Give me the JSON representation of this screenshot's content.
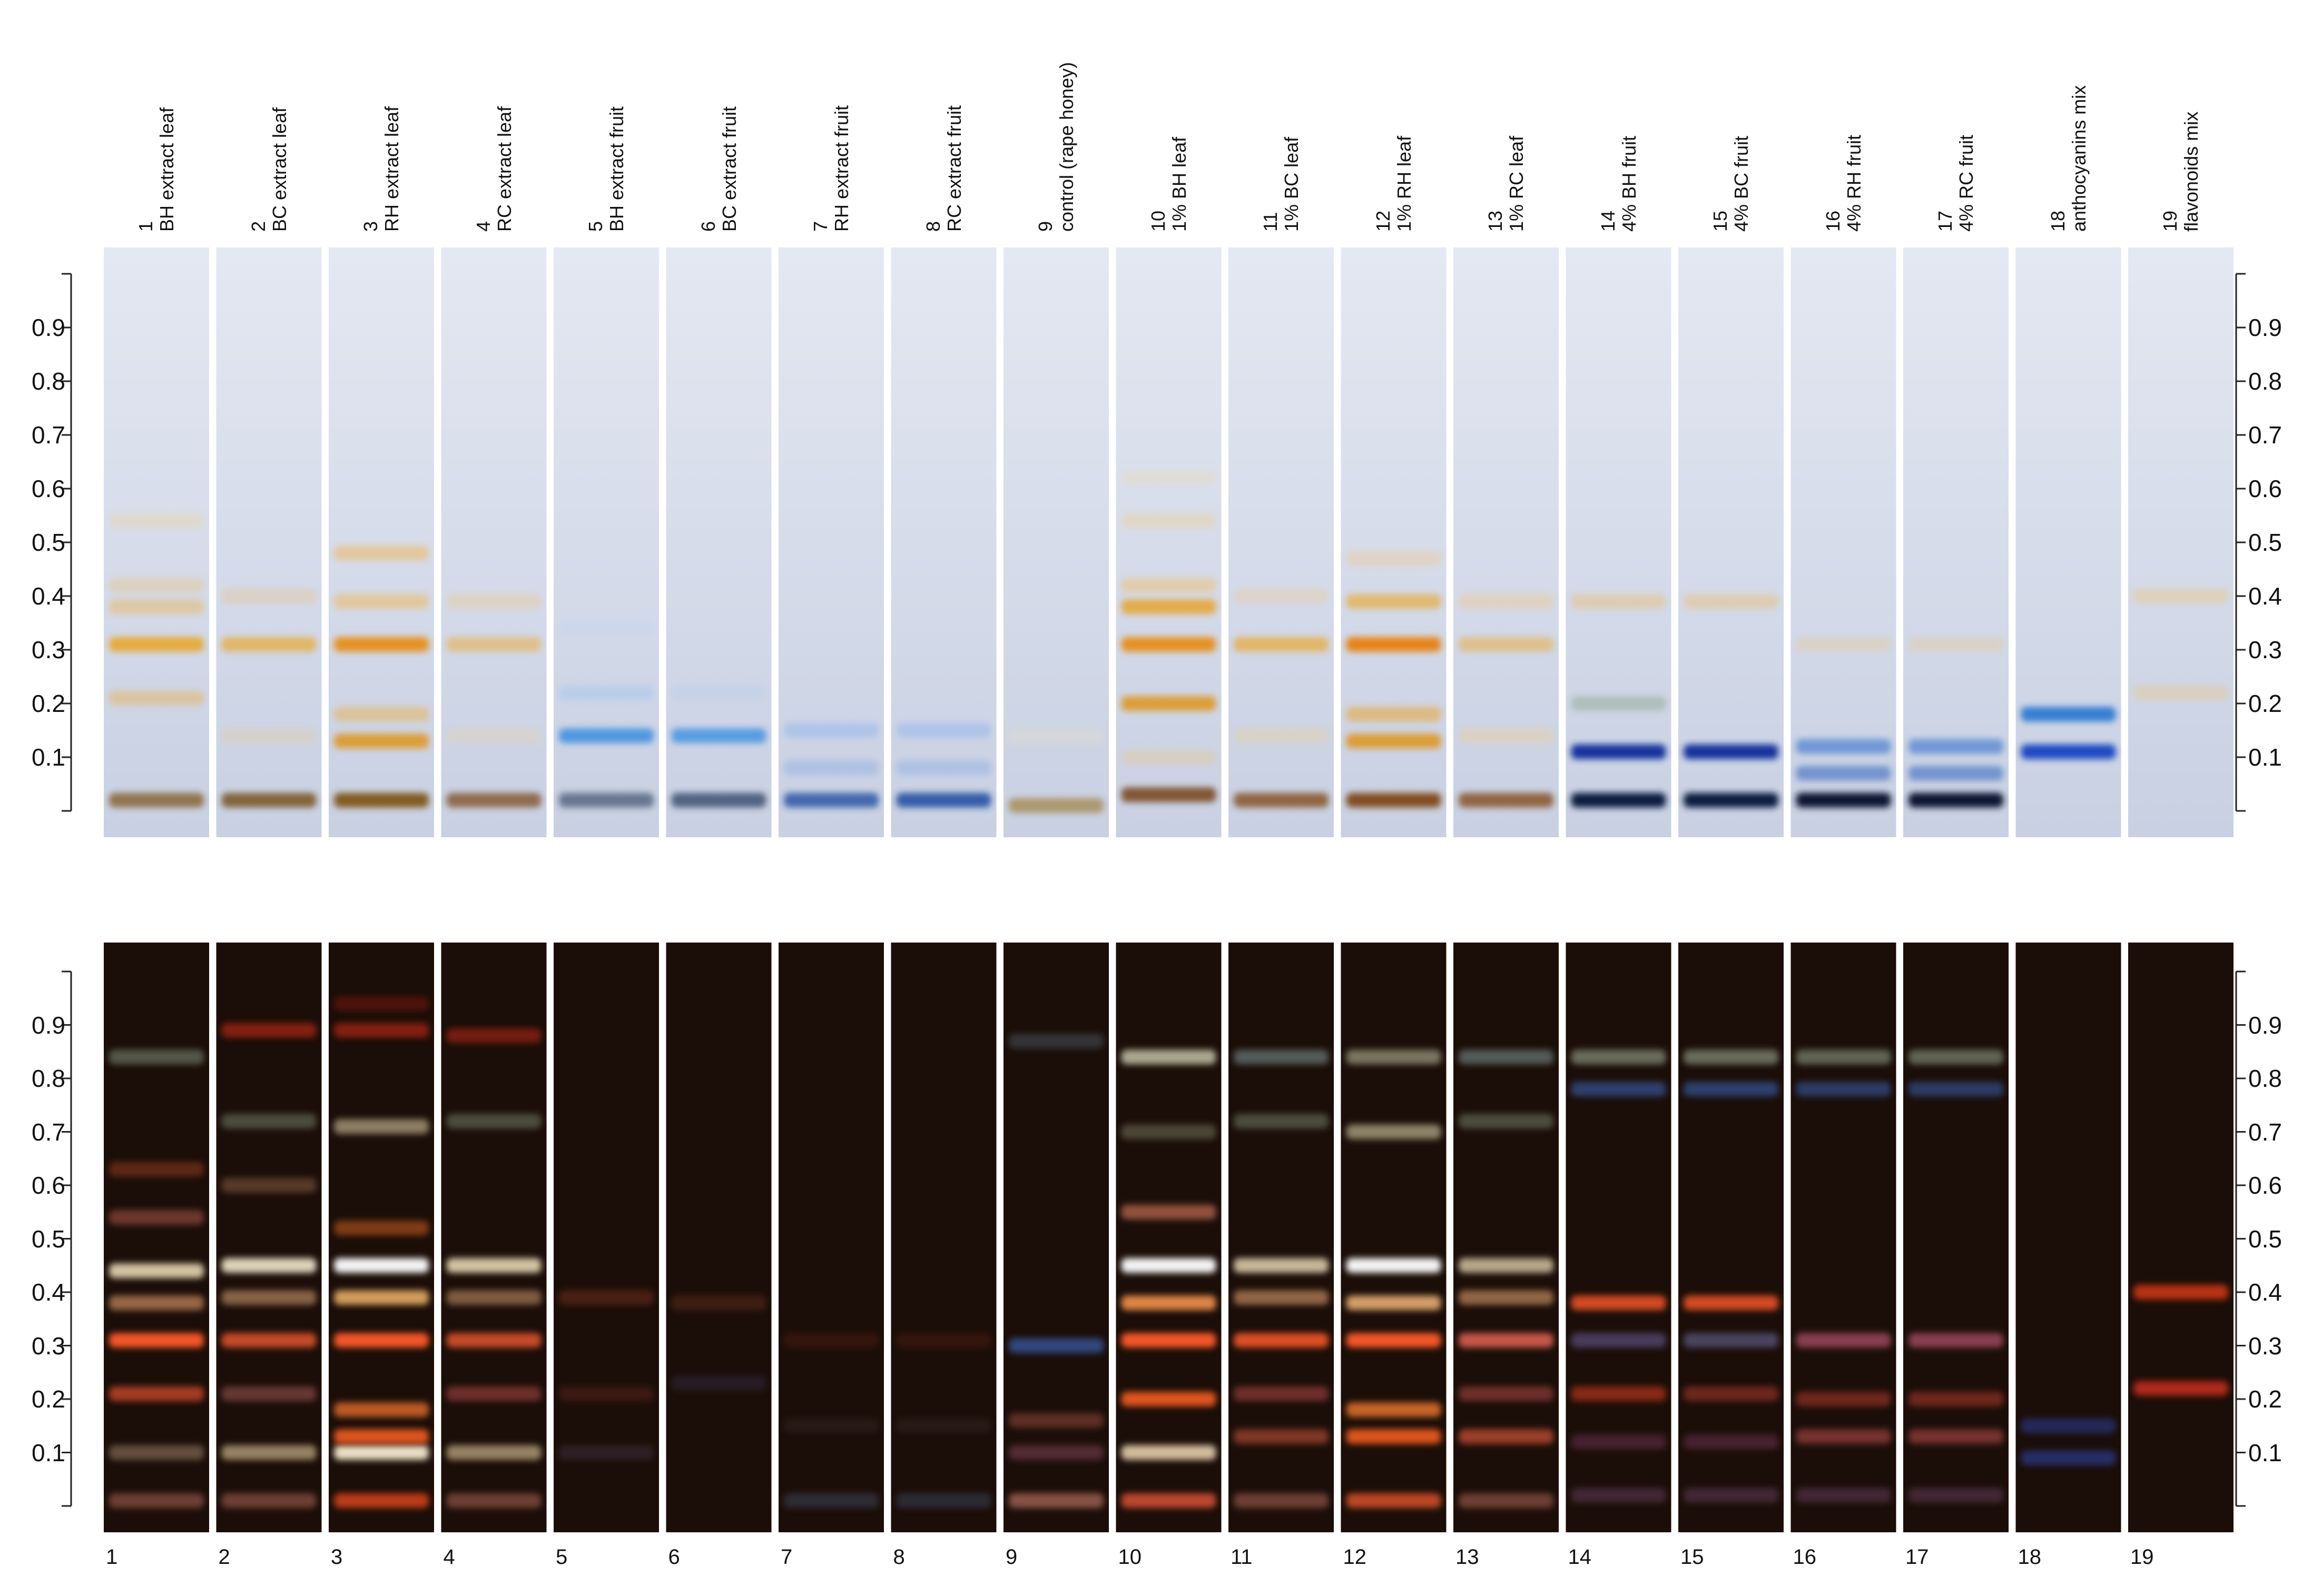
{
  "lanes": [
    {
      "num": "1",
      "label": "BH extract leaf"
    },
    {
      "num": "2",
      "label": "BC extract leaf"
    },
    {
      "num": "3",
      "label": "RH extract leaf"
    },
    {
      "num": "4",
      "label": "RC extract leaf"
    },
    {
      "num": "5",
      "label": "BH extract fruit"
    },
    {
      "num": "6",
      "label": "BC extract fruit"
    },
    {
      "num": "7",
      "label": "RH extract fruit"
    },
    {
      "num": "8",
      "label": "RC extract fruit"
    },
    {
      "num": "9",
      "label": "control (rape honey)"
    },
    {
      "num": "10",
      "label": "1% BH leaf"
    },
    {
      "num": "11",
      "label": "1% BC leaf"
    },
    {
      "num": "12",
      "label": "1% RH leaf"
    },
    {
      "num": "13",
      "label": "1% RC leaf"
    },
    {
      "num": "14",
      "label": "4% BH fruit"
    },
    {
      "num": "15",
      "label": "4% BC fruit"
    },
    {
      "num": "16",
      "label": "4% RH fruit"
    },
    {
      "num": "17",
      "label": "4% RC fruit"
    },
    {
      "num": "18",
      "label": "anthocyanins mix"
    },
    {
      "num": "19",
      "label": "flavonoids mix"
    }
  ],
  "rf_ticks": [
    "0.1",
    "0.2",
    "0.3",
    "0.4",
    "0.5",
    "0.6",
    "0.7",
    "0.8",
    "0.9"
  ],
  "colors": {
    "plate_white": "#d6dbe8",
    "plate_uv": "#1b0e08",
    "yellow_band": "#e8a520",
    "orange_band": "#e88810",
    "blue_band": "#1e6fd0",
    "deep_blue_band": "#0c2a9a",
    "uv_orange": "#ff5a2a",
    "uv_white": "#fff4d8",
    "uv_red": "#b02818"
  },
  "white_light_bands": {
    "1": [
      [
        0.02,
        "#8a6a40",
        0.9
      ],
      [
        0.21,
        "#e6b050",
        0.45
      ],
      [
        0.31,
        "#e8a520",
        0.85
      ],
      [
        0.38,
        "#e8b860",
        0.5
      ],
      [
        0.42,
        "#eec070",
        0.35
      ],
      [
        0.54,
        "#eed090",
        0.3
      ]
    ],
    "2": [
      [
        0.02,
        "#7a5a2a",
        0.9
      ],
      [
        0.14,
        "#e8c890",
        0.3
      ],
      [
        0.31,
        "#e8a830",
        0.7
      ],
      [
        0.4,
        "#e8c080",
        0.35
      ]
    ],
    "3": [
      [
        0.02,
        "#7a5010",
        0.9
      ],
      [
        0.13,
        "#e0900a",
        0.8
      ],
      [
        0.18,
        "#e8b050",
        0.5
      ],
      [
        0.31,
        "#e88a10",
        0.9
      ],
      [
        0.39,
        "#eeb860",
        0.55
      ],
      [
        0.48,
        "#eeb860",
        0.55
      ]
    ],
    "4": [
      [
        0.02,
        "#8a6040",
        0.9
      ],
      [
        0.14,
        "#eed0a0",
        0.3
      ],
      [
        0.31,
        "#e8b050",
        0.6
      ],
      [
        0.39,
        "#eec890",
        0.4
      ]
    ],
    "5": [
      [
        0.02,
        "#50607a",
        0.8
      ],
      [
        0.14,
        "#3a8ee0",
        0.85
      ],
      [
        0.22,
        "#9ac0ee",
        0.4
      ],
      [
        0.34,
        "#c0d4f0",
        0.3
      ]
    ],
    "6": [
      [
        0.02,
        "#304a6a",
        0.8
      ],
      [
        0.14,
        "#3a90e0",
        0.8
      ],
      [
        0.22,
        "#b0c8ee",
        0.3
      ]
    ],
    "7": [
      [
        0.02,
        "#2050a0",
        0.8
      ],
      [
        0.08,
        "#80a8e0",
        0.4
      ],
      [
        0.15,
        "#90b4ea",
        0.5
      ]
    ],
    "8": [
      [
        0.02,
        "#1a4aa0",
        0.85
      ],
      [
        0.08,
        "#80a8e0",
        0.4
      ],
      [
        0.15,
        "#90b4ea",
        0.5
      ]
    ],
    "9": [
      [
        0.01,
        "#a08040",
        0.7
      ],
      [
        0.14,
        "#e8e0c0",
        0.3
      ]
    ],
    "10": [
      [
        0.03,
        "#7a4a20",
        0.9
      ],
      [
        0.1,
        "#e8c890",
        0.4
      ],
      [
        0.2,
        "#e0900a",
        0.8
      ],
      [
        0.31,
        "#e88a10",
        0.9
      ],
      [
        0.38,
        "#e8a020",
        0.8
      ],
      [
        0.42,
        "#eec070",
        0.5
      ],
      [
        0.54,
        "#eed090",
        0.4
      ],
      [
        0.62,
        "#eed8a8",
        0.3
      ]
    ],
    "11": [
      [
        0.02,
        "#8a5a30",
        0.9
      ],
      [
        0.14,
        "#eecc90",
        0.35
      ],
      [
        0.31,
        "#e8a830",
        0.7
      ],
      [
        0.4,
        "#eec890",
        0.35
      ]
    ],
    "12": [
      [
        0.02,
        "#7a4010",
        0.9
      ],
      [
        0.13,
        "#e0900a",
        0.8
      ],
      [
        0.18,
        "#e8a840",
        0.6
      ],
      [
        0.31,
        "#e88008",
        0.95
      ],
      [
        0.39,
        "#e8a830",
        0.65
      ],
      [
        0.47,
        "#eec890",
        0.4
      ]
    ],
    "13": [
      [
        0.02,
        "#8a5a30",
        0.9
      ],
      [
        0.14,
        "#eecc90",
        0.4
      ],
      [
        0.31,
        "#e8b050",
        0.6
      ],
      [
        0.39,
        "#eec890",
        0.45
      ]
    ],
    "14": [
      [
        0.02,
        "#0a1a40",
        1
      ],
      [
        0.11,
        "#0c2a9a",
        0.95
      ],
      [
        0.2,
        "#90a890",
        0.5
      ],
      [
        0.39,
        "#e8c080",
        0.5
      ]
    ],
    "15": [
      [
        0.02,
        "#0a1a40",
        1
      ],
      [
        0.11,
        "#0c2a9a",
        0.95
      ],
      [
        0.39,
        "#e8c080",
        0.5
      ]
    ],
    "16": [
      [
        0.02,
        "#0a1430",
        1
      ],
      [
        0.07,
        "#3a6ac0",
        0.6
      ],
      [
        0.12,
        "#4a80d0",
        0.7
      ],
      [
        0.31,
        "#e8c890",
        0.35
      ]
    ],
    "17": [
      [
        0.02,
        "#0a1430",
        1
      ],
      [
        0.07,
        "#3a6ac0",
        0.6
      ],
      [
        0.12,
        "#4a80d0",
        0.7
      ],
      [
        0.31,
        "#e8c890",
        0.35
      ]
    ],
    "18": [
      [
        0.11,
        "#0c3ac0",
        0.9
      ],
      [
        0.18,
        "#1e6fd0",
        0.85
      ]
    ],
    "19": [
      [
        0.22,
        "#e8c890",
        0.45
      ],
      [
        0.4,
        "#e8c890",
        0.5
      ]
    ]
  },
  "uv_bands": {
    "1": [
      [
        0.01,
        "#c07060",
        0.5
      ],
      [
        0.1,
        "#d0b090",
        0.4
      ],
      [
        0.21,
        "#e05030",
        0.7
      ],
      [
        0.31,
        "#ff5a2a",
        0.95
      ],
      [
        0.38,
        "#e8a070",
        0.6
      ],
      [
        0.44,
        "#fff0c8",
        0.8
      ],
      [
        0.54,
        "#c06050",
        0.5
      ],
      [
        0.63,
        "#a04020",
        0.5
      ],
      [
        0.84,
        "#8aa088",
        0.5
      ]
    ],
    "2": [
      [
        0.01,
        "#c07060",
        0.5
      ],
      [
        0.1,
        "#e8d0a0",
        0.6
      ],
      [
        0.21,
        "#b06060",
        0.5
      ],
      [
        0.31,
        "#f05a30",
        0.8
      ],
      [
        0.39,
        "#e0a878",
        0.55
      ],
      [
        0.45,
        "#fff4d8",
        0.85
      ],
      [
        0.6,
        "#a07050",
        0.45
      ],
      [
        0.72,
        "#8a9880",
        0.45
      ],
      [
        0.89,
        "#b02818",
        0.7
      ]
    ],
    "3": [
      [
        0.01,
        "#ff5020",
        0.7
      ],
      [
        0.1,
        "#fff4d8",
        0.9
      ],
      [
        0.13,
        "#ff6020",
        0.85
      ],
      [
        0.18,
        "#ff7a30",
        0.7
      ],
      [
        0.31,
        "#ff5a2a",
        0.95
      ],
      [
        0.39,
        "#ffc070",
        0.8
      ],
      [
        0.45,
        "#ffffff",
        0.95
      ],
      [
        0.52,
        "#d06020",
        0.55
      ],
      [
        0.71,
        "#d8c8a0",
        0.6
      ],
      [
        0.89,
        "#b02818",
        0.7
      ],
      [
        0.94,
        "#801810",
        0.5
      ]
    ],
    "4": [
      [
        0.01,
        "#c07060",
        0.5
      ],
      [
        0.1,
        "#e8d0a0",
        0.6
      ],
      [
        0.21,
        "#c05050",
        0.5
      ],
      [
        0.31,
        "#f05a30",
        0.8
      ],
      [
        0.39,
        "#e0a878",
        0.5
      ],
      [
        0.45,
        "#fff0c8",
        0.8
      ],
      [
        0.72,
        "#8a9880",
        0.45
      ],
      [
        0.88,
        "#b02818",
        0.6
      ]
    ],
    "5": [
      [
        0.1,
        "#4a3a50",
        0.4
      ],
      [
        0.21,
        "#6a2a20",
        0.4
      ],
      [
        0.39,
        "#7a3020",
        0.5
      ]
    ],
    "6": [
      [
        0.23,
        "#3a3050",
        0.4
      ],
      [
        0.38,
        "#6a3020",
        0.45
      ]
    ],
    "7": [
      [
        0.01,
        "#404a60",
        0.5
      ],
      [
        0.15,
        "#403030",
        0.35
      ],
      [
        0.31,
        "#5a2018",
        0.4
      ]
    ],
    "8": [
      [
        0.01,
        "#3a4a60",
        0.5
      ],
      [
        0.15,
        "#403030",
        0.35
      ],
      [
        0.31,
        "#5a2018",
        0.4
      ]
    ],
    "9": [
      [
        0.01,
        "#d08070",
        0.6
      ],
      [
        0.1,
        "#8a4a60",
        0.5
      ],
      [
        0.16,
        "#a05040",
        0.5
      ],
      [
        0.3,
        "#3a60b0",
        0.7
      ],
      [
        0.87,
        "#5a6a80",
        0.4
      ]
    ],
    "10": [
      [
        0.01,
        "#ff6040",
        0.7
      ],
      [
        0.1,
        "#ffe8c0",
        0.8
      ],
      [
        0.2,
        "#ff6020",
        0.85
      ],
      [
        0.31,
        "#ff5a2a",
        0.95
      ],
      [
        0.38,
        "#ff9a50",
        0.85
      ],
      [
        0.45,
        "#ffffff",
        0.95
      ],
      [
        0.55,
        "#e08060",
        0.6
      ],
      [
        0.7,
        "#8a8a70",
        0.45
      ],
      [
        0.84,
        "#e8e8c8",
        0.7
      ]
    ],
    "11": [
      [
        0.01,
        "#c07060",
        0.5
      ],
      [
        0.13,
        "#e06040",
        0.5
      ],
      [
        0.21,
        "#c05050",
        0.5
      ],
      [
        0.31,
        "#ff5a2a",
        0.85
      ],
      [
        0.39,
        "#e0a070",
        0.6
      ],
      [
        0.45,
        "#fff0c8",
        0.75
      ],
      [
        0.72,
        "#8a9880",
        0.45
      ],
      [
        0.84,
        "#8aa8a8",
        0.5
      ]
    ],
    "12": [
      [
        0.01,
        "#ff6030",
        0.7
      ],
      [
        0.13,
        "#ff6020",
        0.85
      ],
      [
        0.18,
        "#ff8030",
        0.75
      ],
      [
        0.31,
        "#ff5a2a",
        0.95
      ],
      [
        0.38,
        "#ffc080",
        0.8
      ],
      [
        0.45,
        "#ffffff",
        0.95
      ],
      [
        0.7,
        "#d8d0a8",
        0.6
      ],
      [
        0.84,
        "#c8c8a8",
        0.55
      ]
    ],
    "13": [
      [
        0.01,
        "#c07060",
        0.5
      ],
      [
        0.13,
        "#f06040",
        0.6
      ],
      [
        0.21,
        "#c05050",
        0.5
      ],
      [
        0.31,
        "#ff7060",
        0.75
      ],
      [
        0.39,
        "#e0a070",
        0.6
      ],
      [
        0.45,
        "#f8e8c0",
        0.7
      ],
      [
        0.72,
        "#8a9880",
        0.45
      ],
      [
        0.84,
        "#8aa8a8",
        0.5
      ]
    ],
    "14": [
      [
        0.02,
        "#6a4060",
        0.5
      ],
      [
        0.12,
        "#6a3050",
        0.55
      ],
      [
        0.21,
        "#e04020",
        0.55
      ],
      [
        0.31,
        "#7060a0",
        0.55
      ],
      [
        0.38,
        "#ff5a2a",
        0.8
      ],
      [
        0.78,
        "#3a60b0",
        0.6
      ],
      [
        0.84,
        "#a8b8a0",
        0.55
      ]
    ],
    "15": [
      [
        0.02,
        "#6a4060",
        0.5
      ],
      [
        0.12,
        "#6a3050",
        0.55
      ],
      [
        0.21,
        "#c04030",
        0.5
      ],
      [
        0.31,
        "#7070a8",
        0.55
      ],
      [
        0.38,
        "#ff5a2a",
        0.8
      ],
      [
        0.78,
        "#3a60b0",
        0.6
      ],
      [
        0.84,
        "#a8b8a0",
        0.55
      ]
    ],
    "16": [
      [
        0.02,
        "#6a4060",
        0.5
      ],
      [
        0.13,
        "#c05050",
        0.55
      ],
      [
        0.2,
        "#c04030",
        0.5
      ],
      [
        0.31,
        "#d06080",
        0.6
      ],
      [
        0.78,
        "#3a60b0",
        0.55
      ],
      [
        0.84,
        "#a8b8a0",
        0.5
      ]
    ],
    "17": [
      [
        0.02,
        "#6a4060",
        0.5
      ],
      [
        0.13,
        "#c05050",
        0.55
      ],
      [
        0.2,
        "#c04030",
        0.5
      ],
      [
        0.31,
        "#d06080",
        0.6
      ],
      [
        0.78,
        "#3a60b0",
        0.55
      ],
      [
        0.84,
        "#a8b8a0",
        0.5
      ]
    ],
    "18": [
      [
        0.09,
        "#2a3a90",
        0.7
      ],
      [
        0.15,
        "#2a3a90",
        0.6
      ]
    ],
    "19": [
      [
        0.22,
        "#e03020",
        0.75
      ],
      [
        0.4,
        "#e03a18",
        0.8
      ]
    ]
  }
}
